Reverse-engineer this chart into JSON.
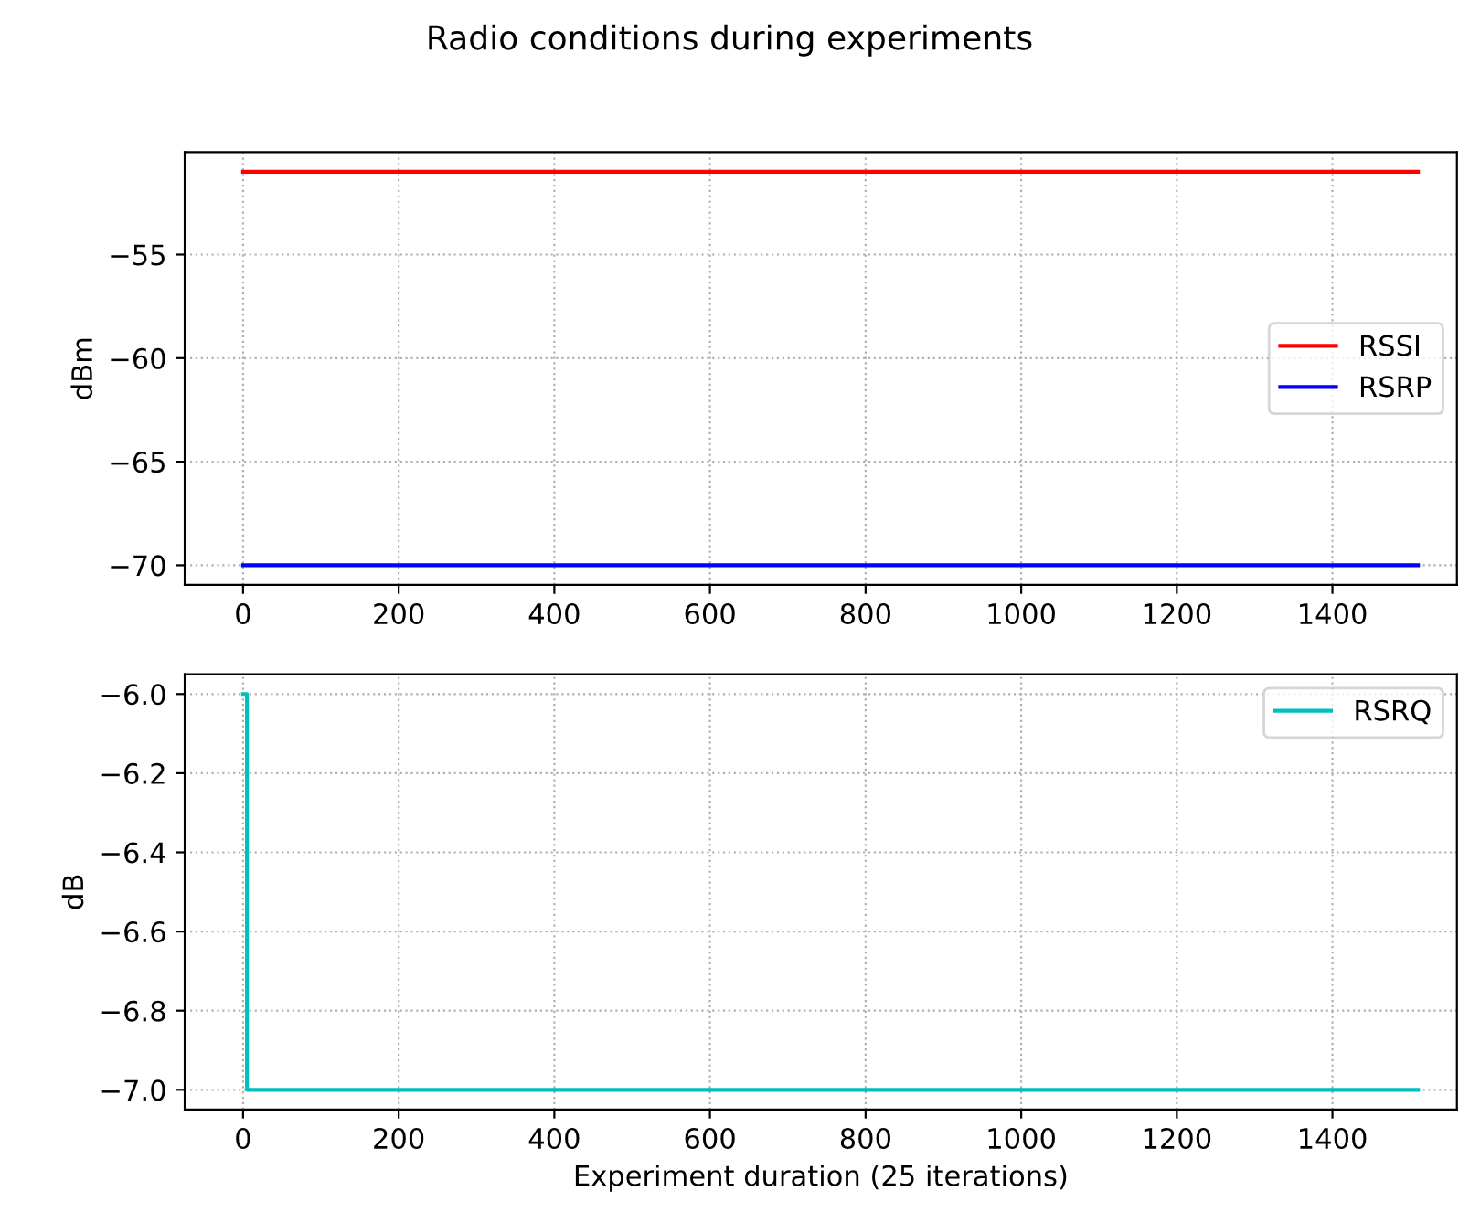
{
  "chart_data": [
    {
      "type": "line",
      "title": "Radio conditions during experiments",
      "ylabel": "dBm",
      "xlim": [
        -75,
        1560
      ],
      "xticks": [
        0,
        200,
        400,
        600,
        800,
        1000,
        1200,
        1400
      ],
      "ylim": [
        -70.95,
        -50.05
      ],
      "yticks": [
        -55,
        -60,
        -65,
        -70
      ],
      "grid": true,
      "legend": "center right",
      "series": [
        {
          "name": "RSSI",
          "color": "#ff0000",
          "x": [
            0,
            1510
          ],
          "values": [
            -51,
            -51
          ]
        },
        {
          "name": "RSRP",
          "color": "#0000ff",
          "x": [
            0,
            1510
          ],
          "values": [
            -70,
            -70
          ]
        }
      ]
    },
    {
      "type": "step",
      "xlabel": "Experiment duration (25 iterations)",
      "ylabel": "dB",
      "xlim": [
        -75,
        1560
      ],
      "xticks": [
        0,
        200,
        400,
        600,
        800,
        1000,
        1200,
        1400
      ],
      "ylim": [
        -7.05,
        -5.95
      ],
      "yticks": [
        {
          "value": -6,
          "label": "−6.0"
        },
        {
          "value": -6.2,
          "label": "−6.2"
        },
        {
          "value": -6.4,
          "label": "−6.4"
        },
        {
          "value": -6.6,
          "label": "−6.6"
        },
        {
          "value": -6.8,
          "label": "−6.8"
        },
        {
          "value": -7,
          "label": "−7.0"
        }
      ],
      "grid": true,
      "legend": "top right",
      "series": [
        {
          "name": "RSRQ",
          "color": "#00bfbf",
          "x": [
            0,
            5,
            1510
          ],
          "values": [
            -6,
            -7,
            -7
          ]
        }
      ]
    }
  ]
}
